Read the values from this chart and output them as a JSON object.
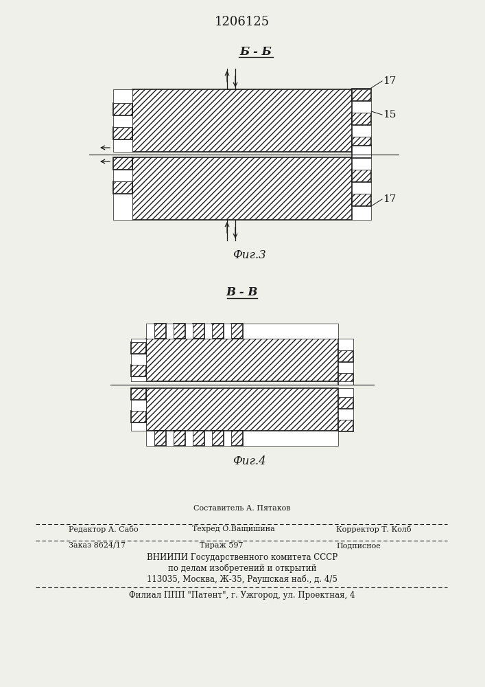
{
  "title_patent": "1206125",
  "fig3_label": "Б - Б",
  "fig3_caption": "Фиг.3",
  "fig4_label": "В - В",
  "fig4_caption": "Фиг.4",
  "label_17_top": "17",
  "label_15": "15",
  "label_17_bot": "17",
  "editor": "Редактор А. Сабо",
  "composer": "Составитель А. Пятаков",
  "corrector": "Корректор Т. Колб",
  "techred": "Техред О.Ващишина",
  "order": "Заказ 8624/17",
  "tirazh": "Тираж 597",
  "podpisnoe": "Подписное",
  "vniipи": "ВНИИПИ Государственного комитета СССР",
  "po_delam": "по делам изобретений и открытий",
  "address": "113035, Москва, Ж-35, Раушская наб., д. 4/5",
  "filial": "Филиал ППП \"Патент\", г. Ужгород, ул. Проектная, 4",
  "bg_color": "#f0f0eb"
}
